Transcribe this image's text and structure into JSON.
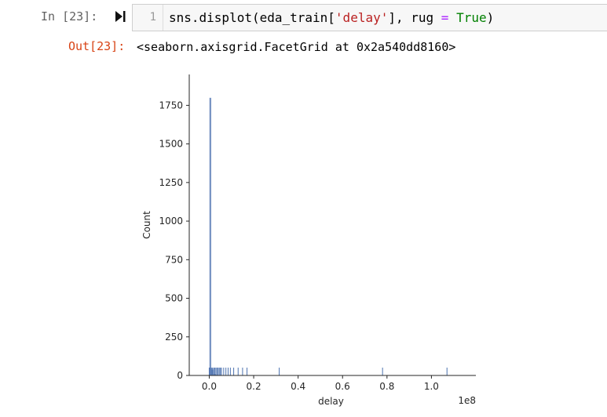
{
  "cell": {
    "in_prompt": "In [23]:",
    "line_number": "1",
    "code": {
      "part1": "sns.displot(eda_train[",
      "string": "'delay'",
      "part2": "], rug ",
      "op": "=",
      "part3": " ",
      "keyword": "True",
      "part4": ")"
    },
    "out_prompt": "Out[23]:",
    "output_text": "<seaborn.axisgrid.FacetGrid at 0x2a540dd8160>"
  },
  "icons": {
    "run": "run-cell-icon"
  },
  "colors": {
    "bar": "#4c72b0",
    "in_prompt": "#616161",
    "out_prompt": "#d84315"
  },
  "chart_data": {
    "type": "bar",
    "xlabel": "delay",
    "ylabel": "Count",
    "x_offset_label": "1e8",
    "xlim": [
      -0.09,
      1.2
    ],
    "ylim": [
      0,
      1950
    ],
    "x_ticks": [
      0.0,
      0.2,
      0.4,
      0.6,
      0.8,
      1.0
    ],
    "x_tick_labels": [
      "0.0",
      "0.2",
      "0.4",
      "0.6",
      "0.8",
      "1.0"
    ],
    "y_ticks": [
      0,
      250,
      500,
      750,
      1000,
      1250,
      1500,
      1750
    ],
    "y_tick_labels": [
      "0",
      "250",
      "500",
      "750",
      "1000",
      "1250",
      "1500",
      "1750"
    ],
    "histogram": {
      "bin_width": 0.01,
      "bin_starts": [
        0.0,
        0.01,
        0.02,
        0.03,
        0.04
      ],
      "counts": [
        1800,
        40,
        10,
        5,
        3
      ]
    },
    "rug_values": [
      0.0,
      0.005,
      0.01,
      0.015,
      0.02,
      0.025,
      0.03,
      0.035,
      0.04,
      0.045,
      0.05,
      0.055,
      0.065,
      0.075,
      0.085,
      0.095,
      0.11,
      0.13,
      0.15,
      0.17,
      0.315,
      0.78,
      1.07
    ],
    "grid": false
  }
}
